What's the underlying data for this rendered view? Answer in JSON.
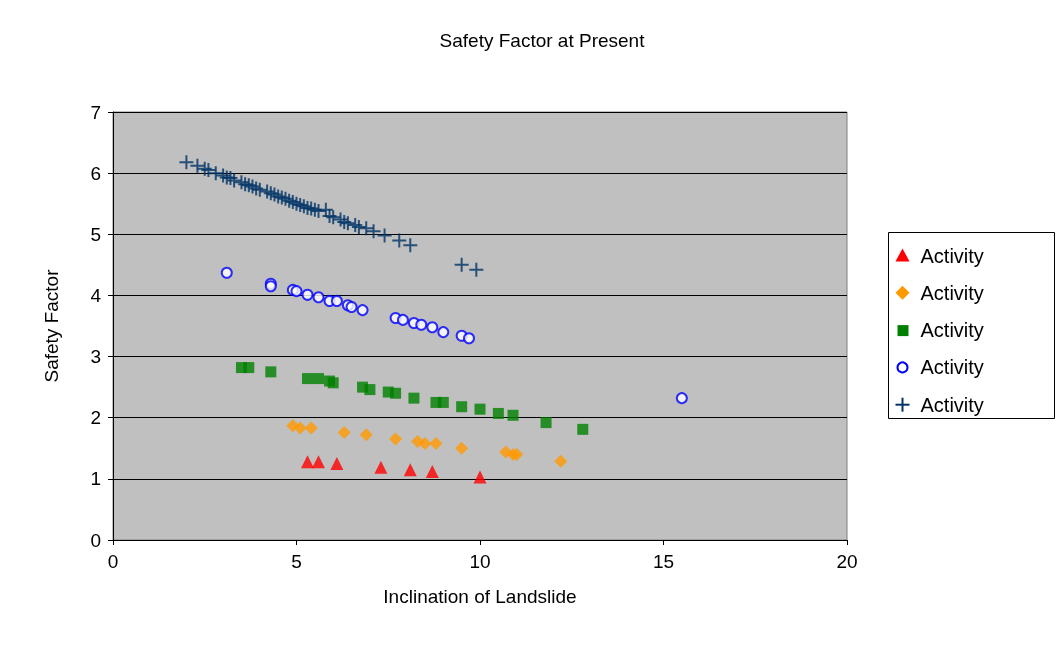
{
  "chart_data": {
    "type": "scatter",
    "title": "Safety Factor at Present",
    "xlabel": "Inclination of Landslide",
    "ylabel": "Safety Factor",
    "xlim": [
      0,
      20
    ],
    "xticks": [
      0,
      5,
      10,
      15,
      20
    ],
    "ylim": [
      0,
      7
    ],
    "yticks": [
      0,
      1,
      2,
      3,
      4,
      5,
      6,
      7
    ],
    "grid": "y",
    "legend": "right",
    "series": [
      {
        "name": "Activity",
        "color": "#ff0000",
        "marker": "triangle",
        "x": [
          5.3,
          5.6,
          6.1,
          7.3,
          8.1,
          8.7,
          10.0
        ],
        "values": [
          1.28,
          1.28,
          1.25,
          1.19,
          1.15,
          1.12,
          1.03
        ]
      },
      {
        "name": "Activity",
        "color": "#ff9900",
        "marker": "diamond",
        "x": [
          4.9,
          5.1,
          5.4,
          6.3,
          6.9,
          7.7,
          8.3,
          8.5,
          8.8,
          9.5,
          10.7,
          10.9,
          11.0,
          12.2
        ],
        "values": [
          1.87,
          1.83,
          1.83,
          1.76,
          1.72,
          1.65,
          1.61,
          1.58,
          1.58,
          1.5,
          1.44,
          1.4,
          1.4,
          1.29
        ]
      },
      {
        "name": "Activity",
        "color": "#008000",
        "marker": "square",
        "x": [
          3.5,
          3.7,
          4.3,
          5.3,
          5.6,
          5.9,
          6.0,
          6.8,
          7.0,
          7.5,
          7.7,
          8.2,
          8.8,
          9.0,
          9.5,
          10.0,
          10.5,
          10.9,
          11.8,
          12.8
        ],
        "values": [
          2.82,
          2.82,
          2.75,
          2.64,
          2.64,
          2.6,
          2.57,
          2.5,
          2.46,
          2.42,
          2.4,
          2.32,
          2.25,
          2.25,
          2.18,
          2.14,
          2.07,
          2.04,
          1.92,
          1.81
        ]
      },
      {
        "name": "Activity",
        "color": "#0000ff",
        "marker": "circle",
        "x": [
          3.1,
          4.3,
          4.3,
          4.9,
          5.0,
          5.3,
          5.6,
          5.9,
          6.1,
          6.4,
          6.5,
          6.8,
          7.7,
          7.9,
          8.2,
          8.4,
          8.7,
          9.0,
          9.5,
          9.7,
          15.5
        ],
        "values": [
          4.37,
          4.19,
          4.15,
          4.09,
          4.07,
          4.01,
          3.97,
          3.91,
          3.91,
          3.84,
          3.81,
          3.76,
          3.63,
          3.6,
          3.55,
          3.52,
          3.48,
          3.4,
          3.34,
          3.3,
          2.32
        ]
      },
      {
        "name": "Activity",
        "color": "#003366",
        "marker": "cross",
        "x": [
          2.0,
          2.3,
          2.5,
          2.6,
          2.8,
          3.0,
          3.1,
          3.2,
          3.3,
          3.5,
          3.6,
          3.7,
          3.8,
          3.9,
          4.0,
          4.2,
          4.3,
          4.4,
          4.5,
          4.6,
          4.7,
          4.8,
          4.9,
          5.0,
          5.1,
          5.2,
          5.3,
          5.4,
          5.5,
          5.6,
          5.8,
          5.9,
          6.0,
          6.2,
          6.3,
          6.4,
          6.6,
          6.7,
          6.9,
          7.1,
          7.4,
          7.8,
          8.1,
          9.5,
          9.9
        ],
        "values": [
          6.18,
          6.12,
          6.07,
          6.05,
          6.0,
          5.96,
          5.93,
          5.92,
          5.88,
          5.85,
          5.82,
          5.8,
          5.78,
          5.75,
          5.73,
          5.7,
          5.67,
          5.65,
          5.62,
          5.6,
          5.58,
          5.55,
          5.53,
          5.5,
          5.48,
          5.46,
          5.43,
          5.42,
          5.4,
          5.38,
          5.4,
          5.3,
          5.28,
          5.24,
          5.2,
          5.18,
          5.15,
          5.12,
          5.1,
          5.05,
          4.98,
          4.9,
          4.82,
          4.5,
          4.42
        ]
      }
    ]
  }
}
